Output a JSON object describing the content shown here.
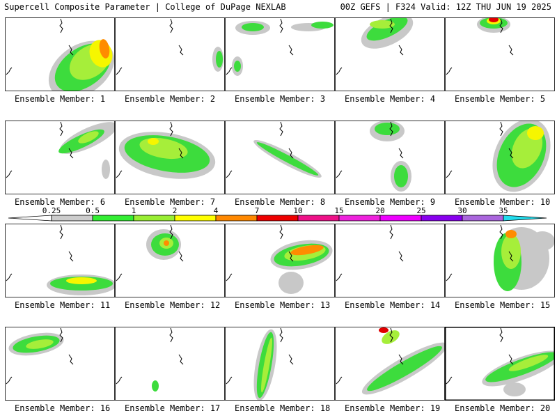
{
  "header": {
    "left": "Supercell Composite Parameter | College of DuPage NEXLAB",
    "right": "00Z GEFS | F324 Valid: 12Z THU JUN 19 2025"
  },
  "panels": [
    {
      "label": "Ensemble Member: 1"
    },
    {
      "label": "Ensemble Member: 2"
    },
    {
      "label": "Ensemble Member: 3"
    },
    {
      "label": "Ensemble Member: 4"
    },
    {
      "label": "Ensemble Member: 5"
    },
    {
      "label": "Ensemble Member: 6"
    },
    {
      "label": "Ensemble Member: 7"
    },
    {
      "label": "Ensemble Member: 8"
    },
    {
      "label": "Ensemble Member: 9"
    },
    {
      "label": "Ensemble Member: 10"
    },
    {
      "label": "Ensemble Member: 11"
    },
    {
      "label": "Ensemble Member: 12"
    },
    {
      "label": "Ensemble Member: 13"
    },
    {
      "label": "Ensemble Member: 14"
    },
    {
      "label": "Ensemble Member: 15"
    },
    {
      "label": "Ensemble Member: 16"
    },
    {
      "label": "Ensemble Member: 17"
    },
    {
      "label": "Ensemble Member: 18"
    },
    {
      "label": "Ensemble Member: 19"
    },
    {
      "label": "Ensemble Member: 20"
    }
  ],
  "legend": {
    "ticks": [
      "0.25",
      "0.5",
      "1",
      "2",
      "4",
      "7",
      "10",
      "15",
      "20",
      "25",
      "30",
      "35"
    ],
    "colors": [
      "#cccccc",
      "#33ee33",
      "#99ee33",
      "#ffff00",
      "#ff8800",
      "#ee0000",
      "#ee1188",
      "#ee22dd",
      "#ee00ff",
      "#8800ee",
      "#aa66dd",
      "#22ddee"
    ]
  },
  "colors": {
    "gray": "#c8c8c8",
    "green": "#3ddc3d",
    "lightgreen": "#a6ee3a",
    "yellow": "#f6f600",
    "orange": "#ff8c00",
    "red": "#e00000"
  }
}
